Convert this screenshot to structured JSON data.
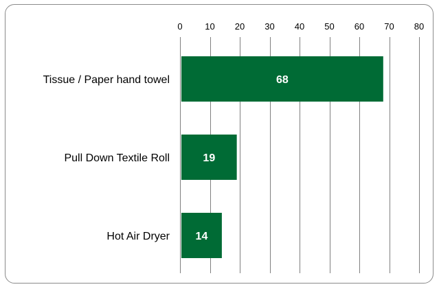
{
  "chart_data": {
    "type": "bar",
    "orientation": "horizontal",
    "categories": [
      "Tissue / Paper hand towel",
      "Pull Down Textile Roll",
      "Hot Air Dryer"
    ],
    "values": [
      68,
      19,
      14
    ],
    "data_labels": [
      "68",
      "19",
      "14"
    ],
    "xlim": [
      0,
      80
    ],
    "x_ticks": [
      "0",
      "10",
      "20",
      "30",
      "40",
      "50",
      "60",
      "70",
      "80"
    ],
    "x_axis_position": "top",
    "grid": true,
    "legend": "none",
    "title": "",
    "xlabel": "",
    "ylabel": ""
  },
  "colors": {
    "bar": "#006b35",
    "bar_label": "#ffffff",
    "grid": "#7f7f7f",
    "frame": "#8a8a8a"
  }
}
